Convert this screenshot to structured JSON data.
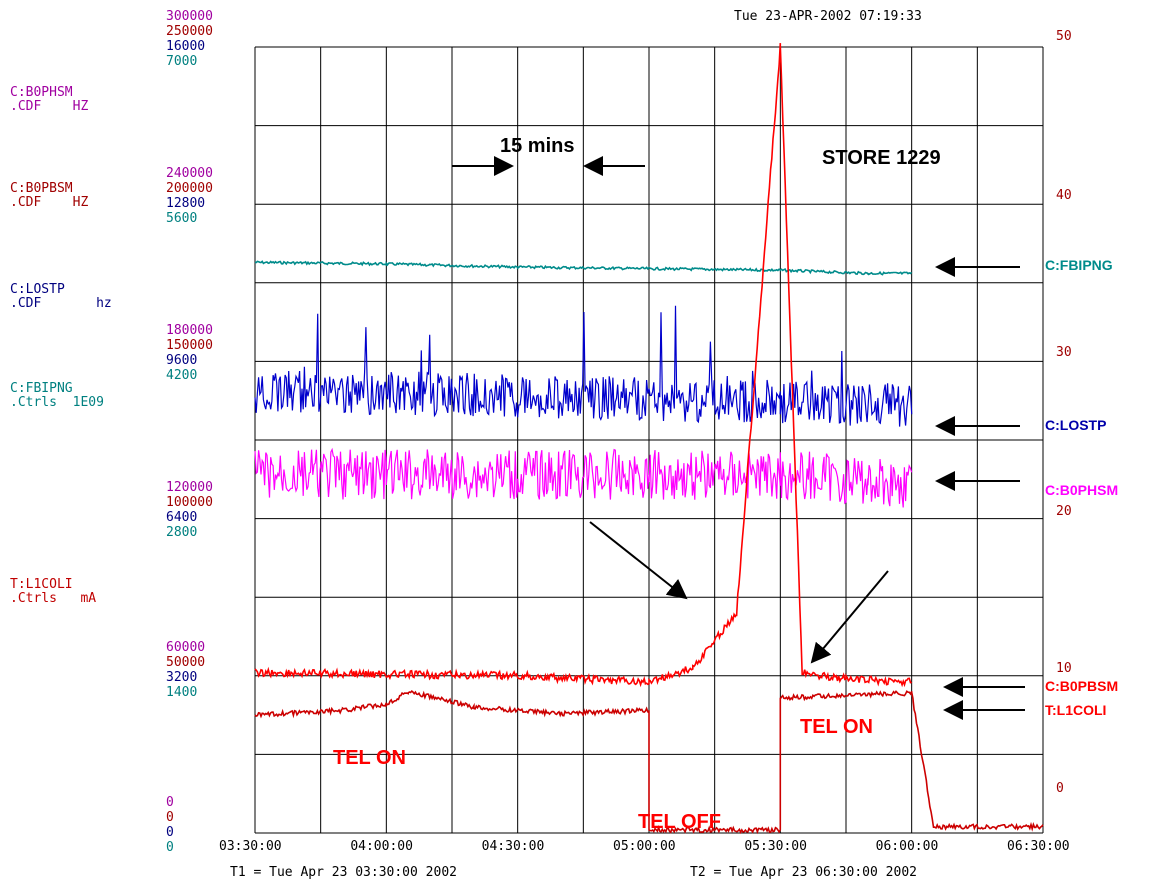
{
  "header": {
    "timestamp": "Tue 23-APR-2002 07:19:33"
  },
  "footer": {
    "t1": "T1 = Tue Apr 23 03:30:00 2002",
    "t2": "T2 = Tue Apr 23 06:30:00 2002"
  },
  "left_axis_groups": [
    {
      "values": [
        "300000",
        "250000",
        "16000",
        "7000"
      ]
    },
    {
      "values": [
        "240000",
        "200000",
        "12800",
        "5600"
      ]
    },
    {
      "values": [
        "180000",
        "150000",
        "9600",
        "4200"
      ]
    },
    {
      "values": [
        "120000",
        "100000",
        "6400",
        "2800"
      ]
    },
    {
      "values": [
        "60000",
        "50000",
        "3200",
        "1400"
      ]
    },
    {
      "values": [
        "0",
        "0",
        "0",
        "0"
      ]
    }
  ],
  "channel_labels": [
    {
      "line1": "C:B0PHSM",
      "line2": ".CDF    HZ",
      "color": "#a000a0"
    },
    {
      "line1": "C:B0PBSM",
      "line2": ".CDF    HZ",
      "color": "#a00000"
    },
    {
      "line1": "C:LOSTP",
      "line2": ".CDF       hz",
      "color": "#000080"
    },
    {
      "line1": "C:FBIPNG",
      "line2": ".Ctrls  1E09",
      "color": "#008080"
    },
    {
      "line1": "T:L1COLI",
      "line2": ".Ctrls   mA",
      "color": "#c00000"
    }
  ],
  "right_axis": {
    "ticks": [
      "50",
      "40",
      "30",
      "20",
      "10",
      "0"
    ],
    "color": "#a00000"
  },
  "annotations": {
    "interval": "15 mins",
    "store": "STORE 1229",
    "tel_on_left": "TEL ON",
    "tel_off": "TEL OFF",
    "tel_on_right": "TEL ON"
  },
  "legend_right": [
    {
      "label": "C:FBIPNG",
      "color": "#008b8b"
    },
    {
      "label": "C:LOSTP",
      "color": "#0000aa"
    },
    {
      "label": "C:B0PHSM",
      "color": "#ff00ff"
    },
    {
      "label": "C:B0PBSM",
      "color": "#ff0000"
    },
    {
      "label": "T:L1COLI",
      "color": "#ff0000"
    }
  ],
  "chart_data": {
    "type": "line",
    "x_ticks": [
      "03:30:00",
      "04:00:00",
      "04:30:00",
      "05:00:00",
      "05:30:00",
      "06:00:00",
      "06:30:00"
    ],
    "xlim": [
      "03:30:00",
      "06:30:00"
    ],
    "right_ylim": [
      0,
      50
    ],
    "series": [
      {
        "name": "C:FBIPNG",
        "color": "#008b8b",
        "x": [
          "03:30:00",
          "04:00:00",
          "04:30:00",
          "05:00:00",
          "05:30:00",
          "05:50:00",
          "06:00:00"
        ],
        "y": [
          36.3,
          36.2,
          36.0,
          35.9,
          35.8,
          35.6,
          35.6
        ]
      },
      {
        "name": "C:LOSTP",
        "color": "#0000cc",
        "x": [
          "03:30:00",
          "04:00:00",
          "04:30:00",
          "05:00:00",
          "05:30:00",
          "06:00:00"
        ],
        "y": [
          28.0,
          28.0,
          27.8,
          27.6,
          27.4,
          27.2
        ]
      },
      {
        "name": "C:B0PHSM",
        "color": "#ff00ff",
        "x": [
          "03:30:00",
          "04:00:00",
          "04:30:00",
          "05:00:00",
          "05:30:00",
          "05:40:00",
          "05:50:00",
          "06:00:00"
        ],
        "y": [
          22.8,
          22.8,
          22.8,
          22.8,
          22.8,
          22.6,
          22.4,
          22.2
        ]
      },
      {
        "name": "C:B0PBSM",
        "color": "#ff0000",
        "x": [
          "03:30:00",
          "04:00:00",
          "04:30:00",
          "05:00:00",
          "05:10:00",
          "05:20:00",
          "05:30:00",
          "05:35:00",
          "05:45:00",
          "06:00:00"
        ],
        "y": [
          10.2,
          10.1,
          10.0,
          9.6,
          10.5,
          14.0,
          50.0,
          10.2,
          9.8,
          9.6
        ]
      },
      {
        "name": "T:L1COLI",
        "color": "#cc0000",
        "x": [
          "03:30:00",
          "03:50:00",
          "04:00:00",
          "04:05:00",
          "04:20:00",
          "04:40:00",
          "05:00:00",
          "05:00:00",
          "05:30:00",
          "05:30:00",
          "06:00:00",
          "06:05:00",
          "06:30:00"
        ],
        "y": [
          7.5,
          7.8,
          8.2,
          9.0,
          8.0,
          7.6,
          7.8,
          0.2,
          0.2,
          8.6,
          8.9,
          0.4,
          0.4
        ]
      }
    ]
  }
}
